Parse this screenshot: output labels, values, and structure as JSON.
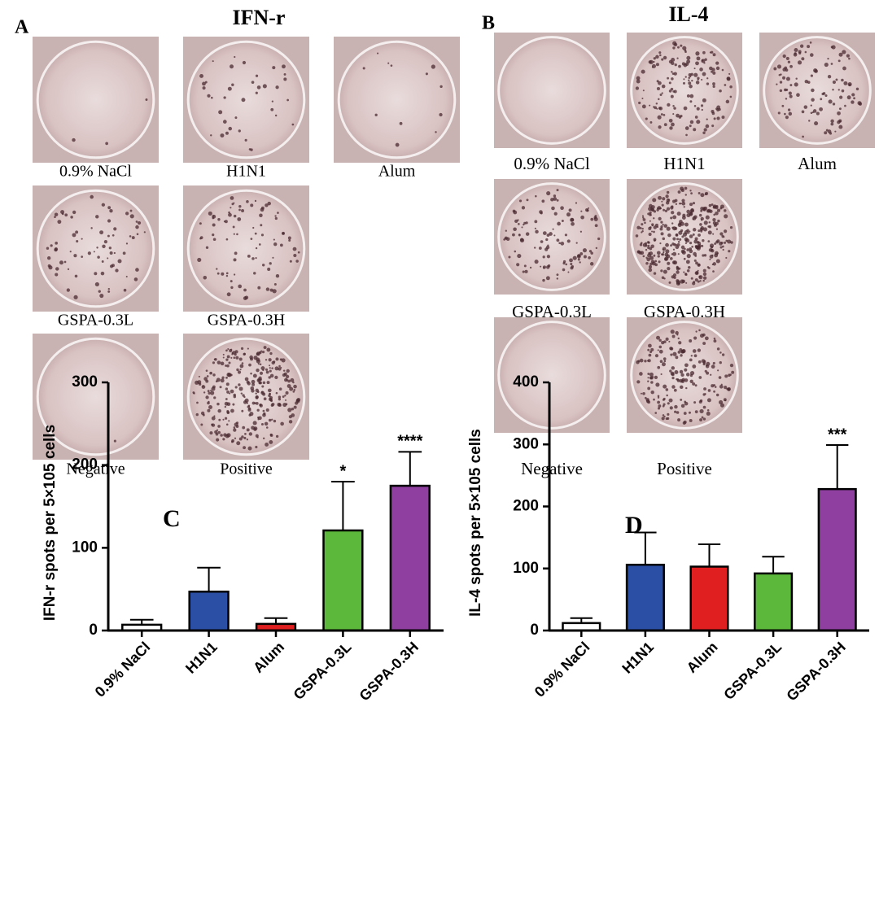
{
  "panels": [
    {
      "letter": "A",
      "title": "IFN-r",
      "wells": [
        "0.9% NaCl",
        "H1N1",
        "Alum",
        "GSPA-0.3L",
        "GSPA-0.3H",
        "Negative",
        "Positive"
      ]
    },
    {
      "letter": "B",
      "title": "IL-4",
      "wells": [
        "0.9% NaCl",
        "H1N1",
        "Alum",
        "GSPA-0.3L",
        "GSPA-0.3H",
        "Negative",
        "Positive"
      ]
    }
  ],
  "chart_data": [
    {
      "type": "bar",
      "panel_label": "C",
      "y_label": "IFN-r spots per 5×105 cells",
      "categories": [
        "0.9% NaCl",
        "H1N1",
        "Alum",
        "GSPA-0.3L",
        "GSPA-0.3H"
      ],
      "values": [
        7,
        47,
        8,
        121,
        175
      ],
      "errors": [
        6,
        29,
        7,
        59,
        41
      ],
      "colors": [
        "#ffffff",
        "#2c4fa6",
        "#e02020",
        "#5cb83a",
        "#8e3fa0"
      ],
      "significance": [
        null,
        null,
        null,
        "*",
        "****"
      ],
      "ylim": [
        0,
        300
      ],
      "yticks": [
        0,
        100,
        200,
        300
      ]
    },
    {
      "type": "bar",
      "panel_label": "D",
      "y_label": "IL-4 spots per 5×105 cells",
      "categories": [
        "0.9% NaCl",
        "H1N1",
        "Alum",
        "GSPA-0.3L",
        "GSPA-0.3H"
      ],
      "values": [
        12,
        106,
        103,
        92,
        228
      ],
      "errors": [
        8,
        52,
        36,
        27,
        71
      ],
      "colors": [
        "#ffffff",
        "#2c4fa6",
        "#e02020",
        "#5cb83a",
        "#8e3fa0"
      ],
      "significance": [
        null,
        null,
        null,
        null,
        "***"
      ],
      "ylim": [
        0,
        400
      ],
      "yticks": [
        0,
        100,
        200,
        300,
        400
      ]
    }
  ]
}
